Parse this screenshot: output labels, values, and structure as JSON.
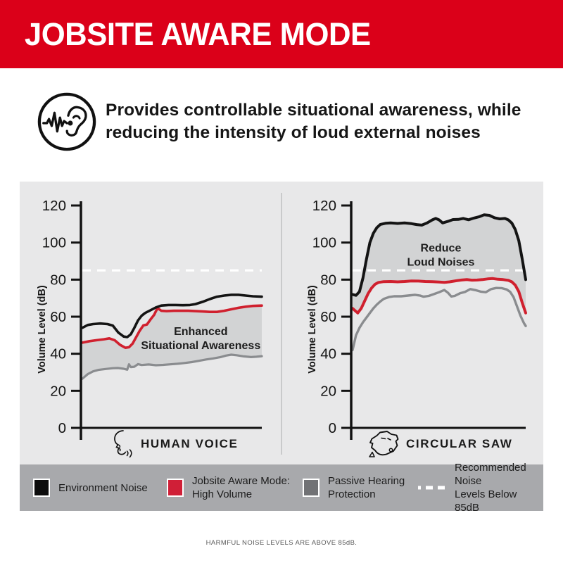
{
  "header": {
    "title": "JOBSITE AWARE MODE"
  },
  "intro": {
    "icon": "hearing-awareness-icon",
    "text": "Provides controllable situational awareness, while\nreducing the intensity of loud external noises"
  },
  "colors": {
    "brand_red": "#DB0019",
    "line_black": "#141414",
    "line_red": "#D0202E",
    "line_gray": "#8A8C8F",
    "panel_bg": "#E8E8E9",
    "band_fill": "#D2D3D4",
    "legend_bg": "#A8A9AC",
    "threshold_white": "#FFFFFF"
  },
  "chart_data": [
    {
      "type": "area",
      "title": "HUMAN VOICE",
      "icon": "human-voice-icon",
      "ylabel": "Volume Level (dB)",
      "ylim": [
        0,
        120
      ],
      "yticks": [
        0,
        20,
        40,
        60,
        80,
        100,
        120
      ],
      "grid": false,
      "threshold": {
        "value": 85,
        "style": "dashed-white",
        "label": "Recommended Noise Levels Below 85dB"
      },
      "annotation": {
        "lines": [
          "Enhanced",
          "Situational Awareness"
        ],
        "x_pct": 66,
        "y_db": 52
      },
      "band": {
        "upper": "Jobsite Aware Mode: High Volume",
        "lower": "Passive Hearing Protection"
      },
      "series": [
        {
          "name": "Environment Noise",
          "color": "#141414",
          "width": 3.6,
          "points": [
            [
              0,
              54
            ],
            [
              3,
              55.5
            ],
            [
              6,
              56
            ],
            [
              10,
              56.3
            ],
            [
              14,
              56
            ],
            [
              17,
              55.2
            ],
            [
              20,
              51.5
            ],
            [
              23,
              49.3
            ],
            [
              25,
              49
            ],
            [
              27,
              50.5
            ],
            [
              29,
              54
            ],
            [
              31,
              58
            ],
            [
              33,
              60.5
            ],
            [
              35,
              62
            ],
            [
              38,
              63.5
            ],
            [
              41,
              65
            ],
            [
              44,
              66
            ],
            [
              48,
              66.3
            ],
            [
              52,
              66.3
            ],
            [
              56,
              66.2
            ],
            [
              60,
              66.3
            ],
            [
              63,
              66.8
            ],
            [
              67,
              68
            ],
            [
              71,
              69.5
            ],
            [
              75,
              70.8
            ],
            [
              79,
              71.4
            ],
            [
              83,
              71.8
            ],
            [
              87,
              71.8
            ],
            [
              91,
              71.4
            ],
            [
              95,
              71
            ],
            [
              100,
              70.8
            ]
          ]
        },
        {
          "name": "Jobsite Aware Mode: High Volume",
          "color": "#D0202E",
          "width": 3.6,
          "points": [
            [
              0,
              46
            ],
            [
              4,
              46.8
            ],
            [
              8,
              47.3
            ],
            [
              12,
              47.8
            ],
            [
              15,
              48.3
            ],
            [
              18,
              47.3
            ],
            [
              21,
              44.8
            ],
            [
              24,
              43.2
            ],
            [
              26,
              43.5
            ],
            [
              28,
              45.5
            ],
            [
              30,
              49
            ],
            [
              32,
              52.5
            ],
            [
              34,
              55.3
            ],
            [
              36,
              55.8
            ],
            [
              38,
              58.5
            ],
            [
              40,
              61
            ],
            [
              41,
              63
            ],
            [
              42,
              64.6
            ],
            [
              44,
              63.2
            ],
            [
              47,
              63
            ],
            [
              51,
              63.2
            ],
            [
              55,
              63.2
            ],
            [
              59,
              63.2
            ],
            [
              63,
              63
            ],
            [
              67,
              62.8
            ],
            [
              71,
              62.6
            ],
            [
              75,
              62.6
            ],
            [
              79,
              63.2
            ],
            [
              83,
              64
            ],
            [
              87,
              64.8
            ],
            [
              91,
              65.4
            ],
            [
              95,
              65.8
            ],
            [
              100,
              66
            ]
          ]
        },
        {
          "name": "Passive Hearing Protection",
          "color": "#8A8C8F",
          "width": 3.2,
          "points": [
            [
              0,
              26.5
            ],
            [
              3,
              29
            ],
            [
              6,
              30.5
            ],
            [
              9,
              31.3
            ],
            [
              13,
              31.8
            ],
            [
              17,
              32.2
            ],
            [
              20,
              32.3
            ],
            [
              23,
              31.9
            ],
            [
              25,
              31.4
            ],
            [
              26,
              34.3
            ],
            [
              27,
              32.8
            ],
            [
              29,
              33
            ],
            [
              31,
              34.4
            ],
            [
              33,
              33.9
            ],
            [
              37,
              34.2
            ],
            [
              41,
              33.8
            ],
            [
              45,
              34
            ],
            [
              49,
              34.3
            ],
            [
              53,
              34.6
            ],
            [
              57,
              35
            ],
            [
              61,
              35.5
            ],
            [
              65,
              36.2
            ],
            [
              69,
              36.9
            ],
            [
              73,
              37.5
            ],
            [
              77,
              38.2
            ],
            [
              80,
              39
            ],
            [
              83,
              39.5
            ],
            [
              86,
              39.2
            ],
            [
              90,
              38.6
            ],
            [
              94,
              38.2
            ],
            [
              97,
              38.4
            ],
            [
              100,
              38.7
            ]
          ]
        }
      ]
    },
    {
      "type": "area",
      "title": "CIRCULAR SAW",
      "icon": "circular-saw-icon",
      "ylabel": "Volume Level (dB)",
      "ylim": [
        0,
        120
      ],
      "yticks": [
        0,
        20,
        40,
        60,
        80,
        100,
        120
      ],
      "grid": false,
      "threshold": {
        "value": 85,
        "style": "dashed-white",
        "label": "Recommended Noise Levels Below 85dB"
      },
      "annotation": {
        "lines": [
          "Reduce",
          "Loud Noises"
        ],
        "x_pct": 51,
        "y_db": 97
      },
      "band": {
        "upper": "Environment Noise",
        "lower": "Jobsite Aware Mode: High Volume"
      },
      "series": [
        {
          "name": "Environment Noise",
          "color": "#141414",
          "width": 4,
          "points": [
            [
              0,
              72
            ],
            [
              2,
              71.5
            ],
            [
              4,
              73.5
            ],
            [
              6,
              81
            ],
            [
              8,
              91
            ],
            [
              10,
              100
            ],
            [
              12,
              105
            ],
            [
              14,
              108
            ],
            [
              16,
              109.8
            ],
            [
              19,
              110.4
            ],
            [
              22,
              110.6
            ],
            [
              26,
              110.3
            ],
            [
              30,
              110.6
            ],
            [
              34,
              110.2
            ],
            [
              37,
              109.7
            ],
            [
              40,
              109.4
            ],
            [
              43,
              110.6
            ],
            [
              46,
              112.2
            ],
            [
              48,
              113
            ],
            [
              50,
              112.2
            ],
            [
              52,
              110.6
            ],
            [
              55,
              111.4
            ],
            [
              58,
              112.4
            ],
            [
              61,
              112.5
            ],
            [
              64,
              113
            ],
            [
              67,
              112.3
            ],
            [
              70,
              113.2
            ],
            [
              73,
              113.9
            ],
            [
              76,
              115
            ],
            [
              79,
              114.7
            ],
            [
              82,
              113.4
            ],
            [
              85,
              112.8
            ],
            [
              88,
              113
            ],
            [
              90,
              112.2
            ],
            [
              92,
              110.5
            ],
            [
              94,
              107
            ],
            [
              96,
              101
            ],
            [
              98,
              91
            ],
            [
              100,
              80
            ]
          ]
        },
        {
          "name": "Jobsite Aware Mode: High Volume",
          "color": "#D0202E",
          "width": 4,
          "points": [
            [
              0,
              64.5
            ],
            [
              2,
              62.8
            ],
            [
              3,
              62
            ],
            [
              5,
              64.5
            ],
            [
              7,
              68.5
            ],
            [
              9,
              72.5
            ],
            [
              11,
              75.5
            ],
            [
              13,
              77.5
            ],
            [
              15,
              78.5
            ],
            [
              18,
              78.9
            ],
            [
              22,
              79
            ],
            [
              26,
              78.8
            ],
            [
              30,
              79
            ],
            [
              34,
              79.3
            ],
            [
              38,
              79.2
            ],
            [
              42,
              79
            ],
            [
              46,
              78.9
            ],
            [
              50,
              78.7
            ],
            [
              53,
              78.5
            ],
            [
              56,
              78.8
            ],
            [
              60,
              79.4
            ],
            [
              63,
              79.8
            ],
            [
              66,
              80
            ],
            [
              69,
              79.7
            ],
            [
              72,
              79.8
            ],
            [
              75,
              80
            ],
            [
              78,
              80.4
            ],
            [
              81,
              80.6
            ],
            [
              84,
              80.2
            ],
            [
              87,
              80
            ],
            [
              90,
              79.6
            ],
            [
              92,
              78.8
            ],
            [
              94,
              77
            ],
            [
              96,
              73.5
            ],
            [
              98,
              67.5
            ],
            [
              100,
              62
            ]
          ]
        },
        {
          "name": "Passive Hearing Protection",
          "color": "#8A8C8F",
          "width": 3.4,
          "points": [
            [
              0,
              42
            ],
            [
              2,
              50
            ],
            [
              4,
              54
            ],
            [
              6,
              57
            ],
            [
              8,
              59.5
            ],
            [
              10,
              62
            ],
            [
              12,
              64.5
            ],
            [
              14,
              66.5
            ],
            [
              16,
              68.2
            ],
            [
              18,
              69.6
            ],
            [
              21,
              70.6
            ],
            [
              24,
              71
            ],
            [
              28,
              71
            ],
            [
              32,
              71.4
            ],
            [
              36,
              71.8
            ],
            [
              39,
              71.4
            ],
            [
              41,
              70.8
            ],
            [
              44,
              71.2
            ],
            [
              47,
              72.2
            ],
            [
              50,
              73.2
            ],
            [
              53,
              74.4
            ],
            [
              55,
              73
            ],
            [
              57,
              70.9
            ],
            [
              59,
              71.2
            ],
            [
              62,
              72.6
            ],
            [
              65,
              73.4
            ],
            [
              68,
              74.9
            ],
            [
              71,
              74.3
            ],
            [
              74,
              73.5
            ],
            [
              77,
              73.2
            ],
            [
              80,
              74.9
            ],
            [
              83,
              75.5
            ],
            [
              86,
              75.4
            ],
            [
              89,
              74.7
            ],
            [
              91,
              73.4
            ],
            [
              93,
              70.5
            ],
            [
              95,
              65.5
            ],
            [
              97,
              60.5
            ],
            [
              99,
              56.5
            ],
            [
              100,
              55
            ]
          ]
        }
      ]
    }
  ],
  "legend": {
    "items": [
      {
        "swatch": "black-square",
        "color": "#0C0C0C",
        "label": "Environment Noise"
      },
      {
        "swatch": "red-square",
        "color": "#D01F37",
        "label": "Jobsite Aware Mode:\nHigh Volume"
      },
      {
        "swatch": "gray-square",
        "color": "#717275",
        "label": "Passive Hearing\nProtection"
      },
      {
        "swatch": "dashed-line",
        "color": "#FFFFFF",
        "label": "Recommended Noise\nLevels Below 85dB"
      }
    ]
  },
  "footer": {
    "note": "HARMFUL NOISE LEVELS ARE ABOVE 85dB."
  }
}
